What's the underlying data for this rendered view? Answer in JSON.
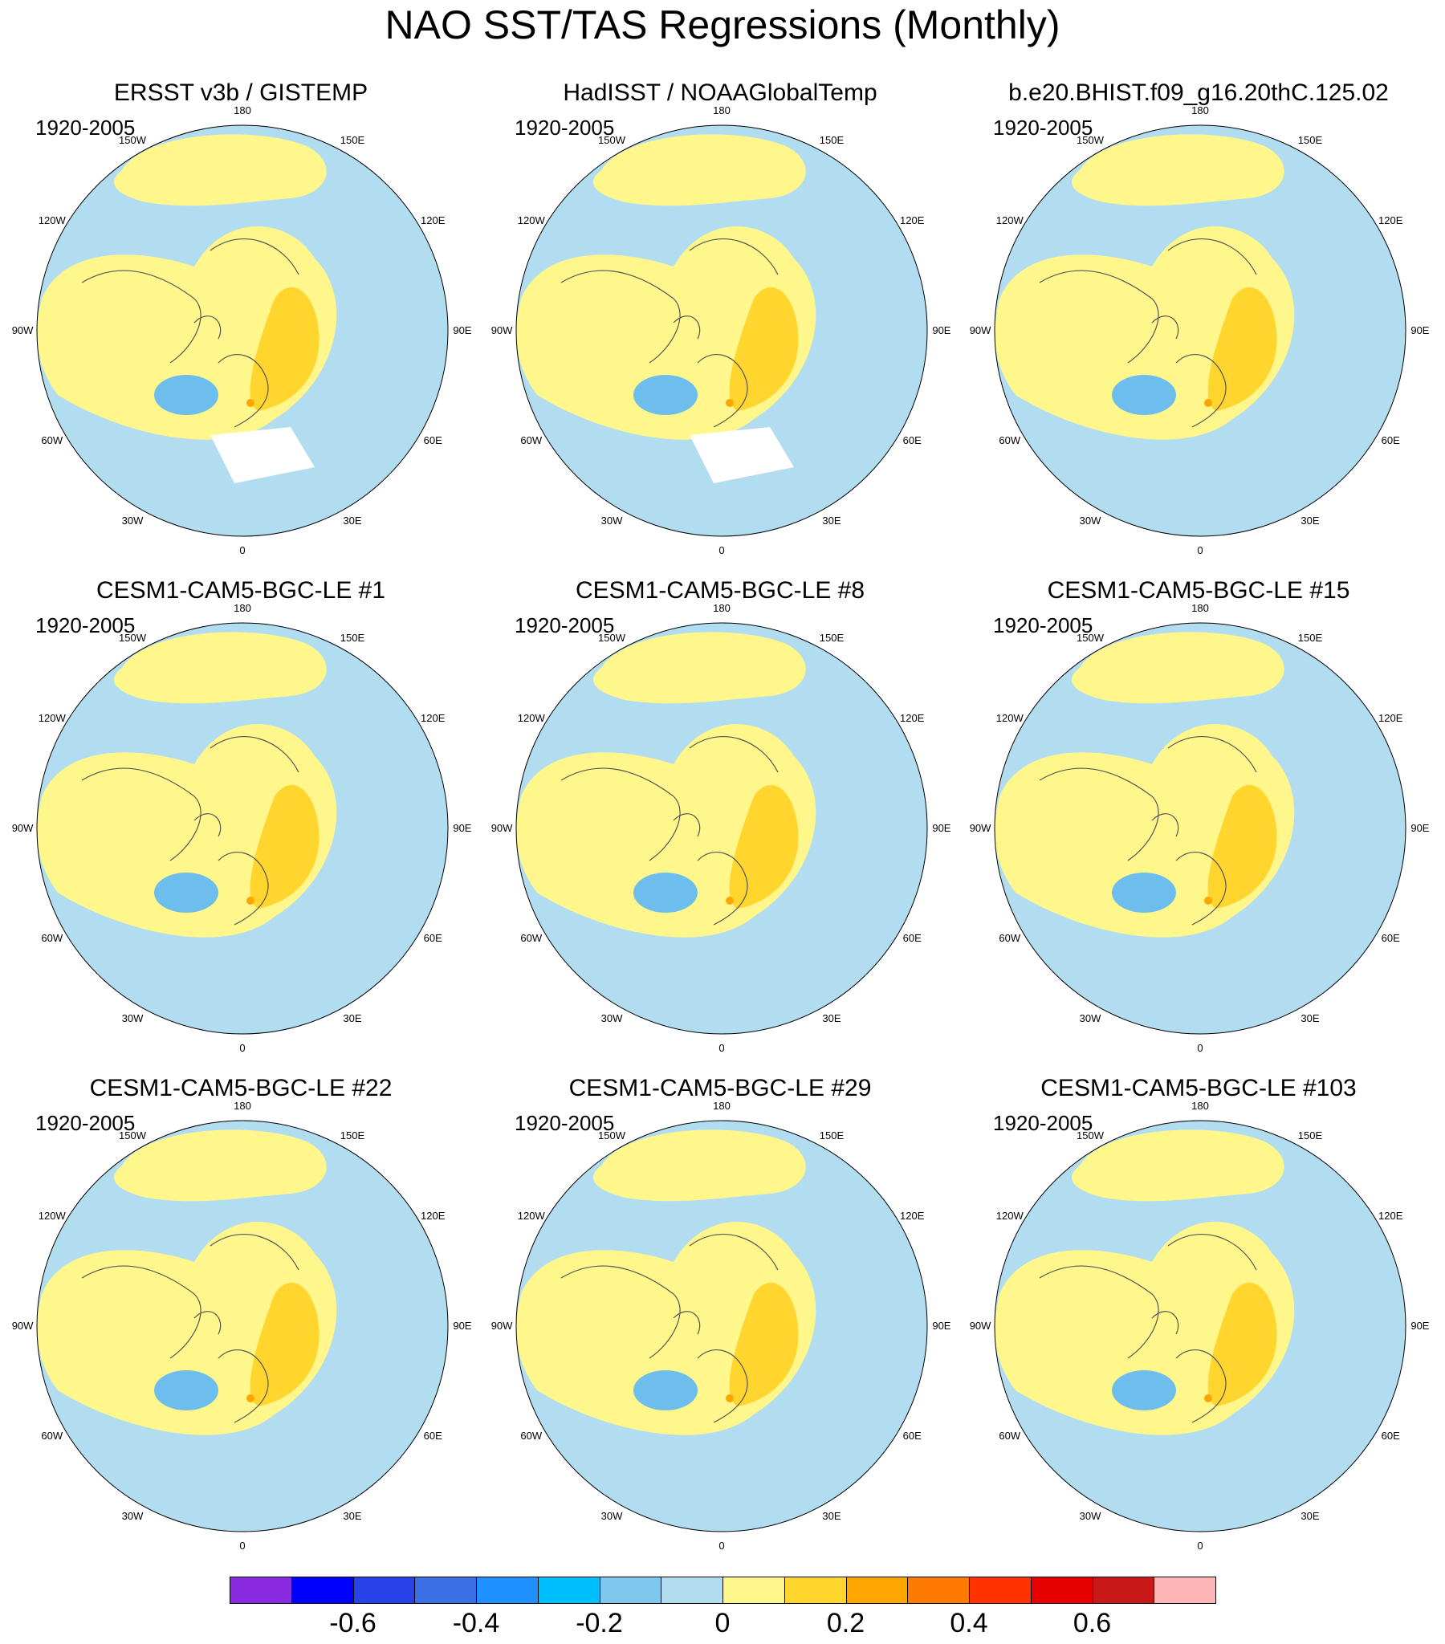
{
  "title": "NAO SST/TAS Regressions (Monthly)",
  "lon_labels": [
    "180",
    "150E",
    "120E",
    "90E",
    "60E",
    "30E",
    "0",
    "30W",
    "60W",
    "90W",
    "120W",
    "150W"
  ],
  "panels": [
    {
      "title": "ERSST v3b / GISTEMP",
      "period": "1920-2005",
      "missing": true
    },
    {
      "title": "HadISST / NOAAGlobalTemp",
      "period": "1920-2005",
      "missing": true
    },
    {
      "title": "b.e20.BHIST.f09_g16.20thC.125.02",
      "period": "1920-2005",
      "missing": false
    },
    {
      "title": "CESM1-CAM5-BGC-LE #1",
      "period": "1920-2005",
      "missing": false
    },
    {
      "title": "CESM1-CAM5-BGC-LE #8",
      "period": "1920-2005",
      "missing": false
    },
    {
      "title": "CESM1-CAM5-BGC-LE #15",
      "period": "1920-2005",
      "missing": false
    },
    {
      "title": "CESM1-CAM5-BGC-LE #22",
      "period": "1920-2005",
      "missing": false
    },
    {
      "title": "CESM1-CAM5-BGC-LE #29",
      "period": "1920-2005",
      "missing": false
    },
    {
      "title": "CESM1-CAM5-BGC-LE #103",
      "period": "1920-2005",
      "missing": false
    }
  ],
  "colorbar": {
    "colors": [
      "#8a2be2",
      "#0000ff",
      "#2842ea",
      "#3a6fe6",
      "#1e90ff",
      "#00bfff",
      "#7ec8ee",
      "#b2dcf0",
      "#fff78c",
      "#ffd52e",
      "#ffa500",
      "#ff7a00",
      "#ff3300",
      "#e60000",
      "#c81818",
      "#ffb6b6"
    ],
    "tick_labels": [
      "-0.6",
      "-0.4",
      "-0.2",
      "0",
      "0.2",
      "0.4",
      "0.6"
    ]
  },
  "palette": {
    "blue_light": "#b2dcf0",
    "blue_mid": "#6ebeed",
    "yellow_light": "#fff78c",
    "yellow_strong": "#ffd52e",
    "orange": "#ffa500",
    "red": "#e60000",
    "coast": "#555555",
    "missing": "#ffffff"
  }
}
